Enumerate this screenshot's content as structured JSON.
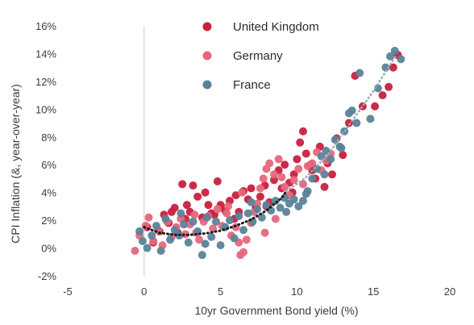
{
  "chart_data": {
    "type": "scatter",
    "title": "",
    "xlabel": "10yr Government Bond yield (%)",
    "ylabel": "CPI Inflation (&, year-over-year)",
    "xlim": [
      -5,
      20
    ],
    "ylim": [
      -2,
      16
    ],
    "x_ticks": [
      -5,
      0,
      5,
      10,
      15,
      20
    ],
    "x_tick_labels": [
      "-5",
      "0",
      "5",
      "10",
      "15",
      "20"
    ],
    "y_ticks": [
      -2,
      0,
      2,
      4,
      6,
      8,
      10,
      12,
      14,
      16
    ],
    "y_tick_labels": [
      "-2%",
      "0%",
      "2%",
      "4%",
      "6%",
      "8%",
      "10%",
      "12%",
      "14%",
      "16%"
    ],
    "legend_position": "top-center",
    "grid": false,
    "series": [
      {
        "name": "United Kingdom",
        "color": "#c8203f",
        "points": [
          [
            0.2,
            1.5
          ],
          [
            0.6,
            0.4
          ],
          [
            1.0,
            1.2
          ],
          [
            1.3,
            2.4
          ],
          [
            1.6,
            1.8
          ],
          [
            2.0,
            2.9
          ],
          [
            2.2,
            1.1
          ],
          [
            2.5,
            4.6
          ],
          [
            2.8,
            3.1
          ],
          [
            3.0,
            2.6
          ],
          [
            3.2,
            4.5
          ],
          [
            3.5,
            3.7
          ],
          [
            3.8,
            2.2
          ],
          [
            4.0,
            4.0
          ],
          [
            4.2,
            3.1
          ],
          [
            4.6,
            2.4
          ],
          [
            4.8,
            4.8
          ],
          [
            5.0,
            3.1
          ],
          [
            5.3,
            2.7
          ],
          [
            5.6,
            3.4
          ],
          [
            5.9,
            2.1
          ],
          [
            6.2,
            2.6
          ],
          [
            6.5,
            4.1
          ],
          [
            6.8,
            3.5
          ],
          [
            7.0,
            4.3
          ],
          [
            7.3,
            2.9
          ],
          [
            7.6,
            3.7
          ],
          [
            7.9,
            4.5
          ],
          [
            8.2,
            3.3
          ],
          [
            8.5,
            4.9
          ],
          [
            8.8,
            5.6
          ],
          [
            9.0,
            4.3
          ],
          [
            9.2,
            6.0
          ],
          [
            9.5,
            4.7
          ],
          [
            9.8,
            5.3
          ],
          [
            10.0,
            6.4
          ],
          [
            10.2,
            7.6
          ],
          [
            10.4,
            8.4
          ],
          [
            10.6,
            6.8
          ],
          [
            10.9,
            6.0
          ],
          [
            11.2,
            5.0
          ],
          [
            11.5,
            7.3
          ],
          [
            11.8,
            4.4
          ],
          [
            12.0,
            6.1
          ],
          [
            12.3,
            5.3
          ],
          [
            12.6,
            7.9
          ],
          [
            13.0,
            6.7
          ],
          [
            13.4,
            9.0
          ],
          [
            13.8,
            12.4
          ],
          [
            14.3,
            10.2
          ],
          [
            15.1,
            10.2
          ],
          [
            15.6,
            11.0
          ],
          [
            16.0,
            11.6
          ],
          [
            16.3,
            13.0
          ],
          [
            16.6,
            13.9
          ],
          [
            8.0,
            3.0
          ],
          [
            6.0,
            3.8
          ],
          [
            4.4,
            2.5
          ],
          [
            2.7,
            2.1
          ],
          [
            1.8,
            2.6
          ],
          [
            9.7,
            4.0
          ],
          [
            11.0,
            5.6
          ]
        ]
      },
      {
        "name": "Germany",
        "color": "#e6677d",
        "points": [
          [
            -0.6,
            -0.2
          ],
          [
            -0.3,
            0.9
          ],
          [
            0.1,
            1.6
          ],
          [
            0.3,
            2.2
          ],
          [
            0.6,
            0.5
          ],
          [
            0.9,
            1.3
          ],
          [
            1.2,
            0.2
          ],
          [
            1.5,
            1.9
          ],
          [
            1.8,
            0.8
          ],
          [
            2.1,
            1.5
          ],
          [
            2.4,
            2.1
          ],
          [
            2.7,
            1.0
          ],
          [
            3.0,
            1.7
          ],
          [
            3.3,
            2.4
          ],
          [
            3.6,
            0.6
          ],
          [
            3.9,
            1.9
          ],
          [
            4.2,
            2.3
          ],
          [
            4.5,
            1.4
          ],
          [
            4.8,
            2.8
          ],
          [
            5.1,
            1.6
          ],
          [
            5.4,
            2.5
          ],
          [
            5.7,
            0.9
          ],
          [
            6.0,
            1.5
          ],
          [
            6.2,
            0.4
          ],
          [
            6.3,
            -0.5
          ],
          [
            6.5,
            -0.3
          ],
          [
            6.7,
            0.6
          ],
          [
            7.0,
            1.8
          ],
          [
            7.2,
            2.6
          ],
          [
            7.4,
            3.2
          ],
          [
            7.6,
            4.3
          ],
          [
            7.8,
            5.0
          ],
          [
            8.0,
            5.7
          ],
          [
            8.2,
            6.1
          ],
          [
            8.5,
            5.3
          ],
          [
            8.8,
            6.4
          ],
          [
            9.0,
            5.1
          ],
          [
            9.2,
            4.4
          ],
          [
            9.5,
            3.8
          ],
          [
            9.8,
            4.9
          ],
          [
            10.1,
            5.7
          ],
          [
            10.4,
            4.6
          ],
          [
            10.7,
            5.9
          ],
          [
            11.0,
            6.1
          ],
          [
            11.3,
            6.9
          ],
          [
            11.6,
            5.6
          ],
          [
            11.9,
            6.3
          ],
          [
            12.2,
            6.8
          ],
          [
            6.4,
            4.0
          ],
          [
            5.5,
            3.0
          ],
          [
            3.4,
            1.1
          ],
          [
            7.9,
            1.1
          ],
          [
            8.6,
            2.1
          ]
        ]
      },
      {
        "name": "France",
        "color": "#5a8399",
        "points": [
          [
            -0.3,
            1.2
          ],
          [
            -0.1,
            0.5
          ],
          [
            0.2,
            0.0
          ],
          [
            0.5,
            0.9
          ],
          [
            0.8,
            1.6
          ],
          [
            1.1,
            -0.2
          ],
          [
            1.4,
            2.1
          ],
          [
            1.7,
            0.6
          ],
          [
            2.0,
            1.3
          ],
          [
            2.3,
            0.9
          ],
          [
            2.6,
            1.7
          ],
          [
            2.9,
            0.4
          ],
          [
            3.2,
            1.9
          ],
          [
            3.5,
            1.2
          ],
          [
            3.8,
            -0.5
          ],
          [
            4.1,
            2.2
          ],
          [
            4.4,
            0.8
          ],
          [
            4.7,
            1.9
          ],
          [
            5.0,
            0.2
          ],
          [
            5.3,
            1.5
          ],
          [
            5.6,
            2.0
          ],
          [
            5.9,
            0.7
          ],
          [
            6.2,
            2.3
          ],
          [
            6.5,
            1.3
          ],
          [
            6.8,
            2.5
          ],
          [
            7.1,
            1.9
          ],
          [
            7.4,
            2.8
          ],
          [
            7.7,
            2.2
          ],
          [
            8.0,
            3.1
          ],
          [
            8.3,
            2.7
          ],
          [
            8.6,
            3.4
          ],
          [
            8.9,
            2.9
          ],
          [
            9.2,
            3.6
          ],
          [
            9.5,
            3.2
          ],
          [
            9.8,
            3.5
          ],
          [
            10.1,
            3.0
          ],
          [
            10.4,
            3.4
          ],
          [
            10.7,
            4.1
          ],
          [
            11.0,
            5.0
          ],
          [
            11.3,
            5.7
          ],
          [
            11.6,
            6.6
          ],
          [
            11.9,
            7.0
          ],
          [
            12.2,
            6.4
          ],
          [
            12.5,
            7.8
          ],
          [
            12.8,
            7.3
          ],
          [
            13.1,
            8.4
          ],
          [
            13.4,
            9.7
          ],
          [
            13.6,
            9.9
          ],
          [
            13.9,
            9.0
          ],
          [
            14.1,
            12.6
          ],
          [
            14.8,
            9.3
          ],
          [
            15.3,
            11.5
          ],
          [
            15.8,
            13.0
          ],
          [
            16.1,
            13.8
          ],
          [
            16.4,
            14.2
          ],
          [
            16.8,
            13.6
          ],
          [
            9.3,
            2.6
          ],
          [
            7.0,
            3.3
          ],
          [
            4.0,
            0.3
          ],
          [
            2.4,
            2.5
          ],
          [
            10.6,
            3.9
          ],
          [
            11.8,
            5.3
          ],
          [
            12.9,
            7.2
          ]
        ]
      }
    ],
    "trendline": {
      "style": "dotted",
      "color": "#1a1a1a",
      "points": [
        [
          0,
          1.5
        ],
        [
          1,
          1.1
        ],
        [
          2,
          0.95
        ],
        [
          3,
          0.95
        ],
        [
          4,
          1.05
        ],
        [
          5,
          1.25
        ],
        [
          6,
          1.6
        ],
        [
          7,
          2.05
        ],
        [
          8,
          2.7
        ],
        [
          9,
          3.6
        ],
        [
          9.3,
          4.1
        ]
      ]
    },
    "trendline_light": {
      "style": "dotted",
      "color": "#9aaab8",
      "points": [
        [
          9.3,
          4.1
        ],
        [
          10.5,
          5.0
        ],
        [
          12,
          6.7
        ],
        [
          13.5,
          9.0
        ],
        [
          15,
          11.3
        ],
        [
          16.5,
          13.9
        ]
      ]
    }
  }
}
